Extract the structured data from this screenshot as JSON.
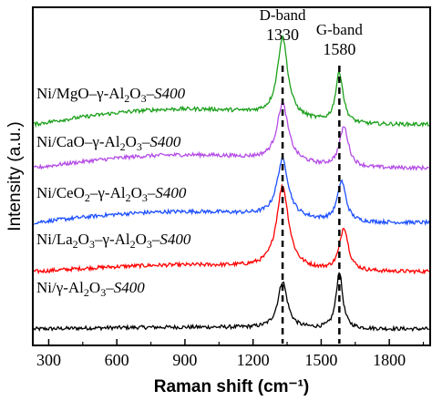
{
  "chart_data": {
    "type": "line",
    "title": "",
    "xlabel": "Raman shift (cm⁻¹)",
    "ylabel": "Intensity (a.u.)",
    "xlim": [
      230,
      1980
    ],
    "ylim": [
      0,
      6.2
    ],
    "x_ticks": [
      300,
      600,
      900,
      1200,
      1500,
      1800
    ],
    "y_ticks_visible": false,
    "grid": false,
    "legend": "none",
    "bands": [
      {
        "name": "D-band",
        "value": "1330",
        "x": 1330
      },
      {
        "name": "G-band",
        "value": "1580",
        "x": 1580
      }
    ],
    "series": [
      {
        "label_parts": [
          "Ni/γ-Al",
          {
            "sub": "2"
          },
          "O",
          {
            "sub": "3"
          },
          "–",
          {
            "i": "S400"
          }
        ],
        "color": "#000000",
        "baseline": 0.3,
        "slope": 0.04,
        "d_peak": {
          "center": 1330,
          "height": 0.85,
          "width": 25
        },
        "g_peak": {
          "center": 1580,
          "height": 1.05,
          "width": 17
        }
      },
      {
        "label_parts": [
          "Ni/La",
          {
            "sub": "2"
          },
          "O",
          {
            "sub": "3"
          },
          "–γ-Al",
          {
            "sub": "2"
          },
          "O",
          {
            "sub": "3"
          },
          "–",
          {
            "i": "S400"
          }
        ],
        "color": "#ff0000",
        "baseline": 1.35,
        "slope": 0.15,
        "d_peak": {
          "center": 1330,
          "height": 1.5,
          "width": 32
        },
        "g_peak": {
          "center": 1600,
          "height": 0.8,
          "width": 23
        }
      },
      {
        "label_parts": [
          "Ni/CeO",
          {
            "sub": "2"
          },
          "–γ-Al",
          {
            "sub": "2"
          },
          "O",
          {
            "sub": "3"
          },
          "–",
          {
            "i": "S400"
          }
        ],
        "color": "#1e50ff",
        "baseline": 2.25,
        "slope": 0.25,
        "d_peak": {
          "center": 1330,
          "height": 1.05,
          "width": 30
        },
        "g_peak": {
          "center": 1590,
          "height": 0.75,
          "width": 23
        }
      },
      {
        "label_parts": [
          "Ni/CaO–γ-Al",
          {
            "sub": "2"
          },
          "O",
          {
            "sub": "3"
          },
          "–",
          {
            "i": "S400"
          }
        ],
        "color": "#b44ce6",
        "baseline": 3.25,
        "slope": 0.3,
        "d_peak": {
          "center": 1330,
          "height": 1.05,
          "width": 30
        },
        "g_peak": {
          "center": 1600,
          "height": 0.75,
          "width": 24
        }
      },
      {
        "label_parts": [
          "Ni/MgO–γ-Al",
          {
            "sub": "2"
          },
          "O",
          {
            "sub": "3"
          },
          "–",
          {
            "i": "S400"
          }
        ],
        "color": "#1ca01c",
        "baseline": 4.05,
        "slope": 0.35,
        "d_peak": {
          "center": 1330,
          "height": 1.45,
          "width": 27
        },
        "g_peak": {
          "center": 1580,
          "height": 0.95,
          "width": 20
        }
      }
    ]
  }
}
